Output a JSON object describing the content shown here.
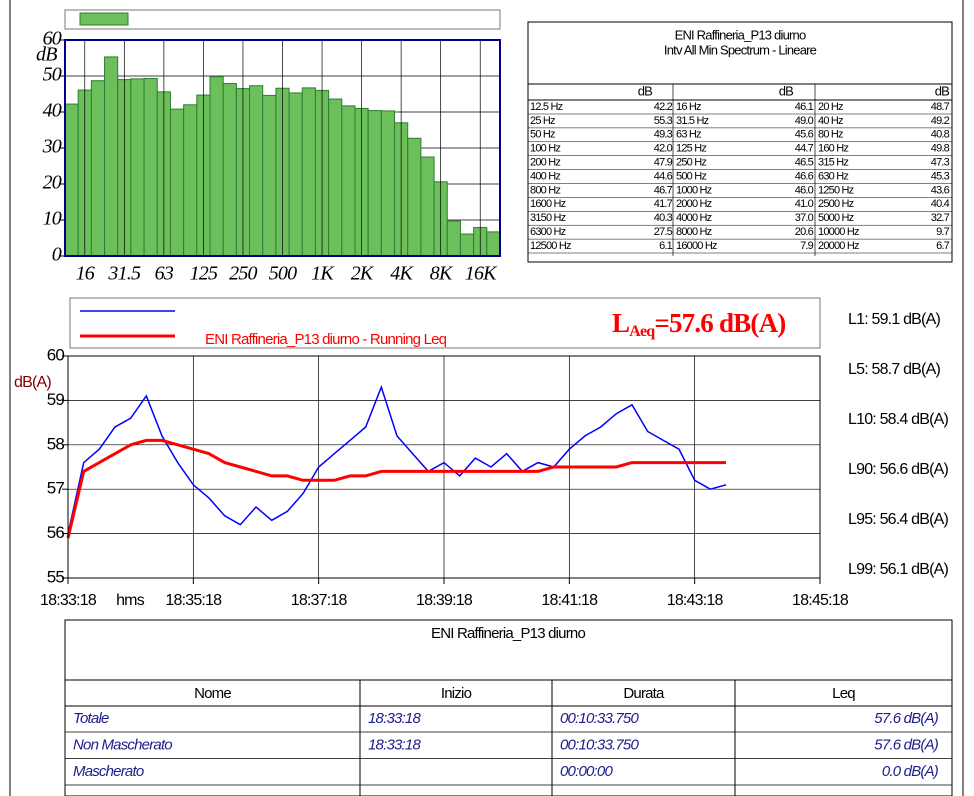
{
  "chart_data": [
    {
      "type": "bar",
      "y_label": "dB",
      "categories": [
        null,
        "16",
        null,
        null,
        "31.5",
        null,
        null,
        "63",
        null,
        null,
        "125",
        null,
        null,
        "250",
        null,
        null,
        "500",
        null,
        null,
        "1K",
        null,
        null,
        "2K",
        null,
        null,
        "4K",
        null,
        null,
        "8K",
        null,
        null,
        "16K",
        null
      ],
      "values": [
        42.2,
        46.1,
        48.7,
        55.3,
        49.0,
        49.2,
        49.3,
        45.6,
        40.8,
        42.0,
        44.7,
        49.8,
        47.9,
        46.5,
        47.3,
        44.6,
        46.6,
        45.3,
        46.7,
        46.0,
        43.6,
        41.7,
        41.0,
        40.4,
        40.3,
        37.0,
        32.7,
        27.5,
        20.6,
        9.7,
        6.1,
        7.9,
        6.7
      ],
      "color": "#6cbf5a",
      "ylim": [
        0,
        60
      ],
      "yticks": [
        0,
        10,
        20,
        30,
        40,
        50,
        60
      ],
      "grid": true
    },
    {
      "type": "line",
      "y_label": "dB(A)",
      "x_label": "hms",
      "x": [
        "18:33:18",
        "18:33:33",
        "18:33:48",
        "18:34:03",
        "18:34:18",
        "18:34:33",
        "18:34:48",
        "18:35:03",
        "18:35:18",
        "18:35:33",
        "18:35:48",
        "18:36:03",
        "18:36:18",
        "18:36:33",
        "18:36:48",
        "18:37:03",
        "18:37:18",
        "18:37:33",
        "18:37:48",
        "18:38:03",
        "18:38:18",
        "18:38:33",
        "18:38:48",
        "18:39:03",
        "18:39:18",
        "18:39:33",
        "18:39:48",
        "18:40:03",
        "18:40:18",
        "18:40:33",
        "18:40:48",
        "18:41:03",
        "18:41:18",
        "18:41:33",
        "18:41:48",
        "18:42:03",
        "18:42:18",
        "18:42:33",
        "18:42:48",
        "18:43:03",
        "18:43:18",
        "18:43:33",
        "18:43:48"
      ],
      "series": [
        {
          "color": "#0000ff",
          "values": [
            56.0,
            57.6,
            57.9,
            58.4,
            58.6,
            59.1,
            58.2,
            57.6,
            57.1,
            56.8,
            56.4,
            56.2,
            56.6,
            56.3,
            56.5,
            56.9,
            57.5,
            57.8,
            58.1,
            58.4,
            59.3,
            58.2,
            57.8,
            57.4,
            57.6,
            57.3,
            57.7,
            57.5,
            57.8,
            57.4,
            57.6,
            57.5,
            57.9,
            58.2,
            58.4,
            58.7,
            58.9,
            58.3,
            58.1,
            57.9,
            57.2,
            57.0,
            57.1
          ]
        },
        {
          "name": "ENI Raffineria_P13 diurno - Running Leq",
          "color": "#ff0000",
          "values": [
            55.9,
            57.4,
            57.6,
            57.8,
            58.0,
            58.1,
            58.1,
            58.0,
            57.9,
            57.8,
            57.6,
            57.5,
            57.4,
            57.3,
            57.3,
            57.2,
            57.2,
            57.2,
            57.3,
            57.3,
            57.4,
            57.4,
            57.4,
            57.4,
            57.4,
            57.4,
            57.4,
            57.4,
            57.4,
            57.4,
            57.4,
            57.5,
            57.5,
            57.5,
            57.5,
            57.5,
            57.6,
            57.6,
            57.6,
            57.6,
            57.6,
            57.6,
            57.6
          ]
        }
      ],
      "xlim": [
        "18:33:18",
        "18:45:18"
      ],
      "xticks": [
        "18:33:18",
        "18:35:18",
        "18:37:18",
        "18:39:18",
        "18:41:18",
        "18:43:18",
        "18:45:18"
      ],
      "ylim": [
        55,
        60
      ],
      "yticks": [
        55,
        56,
        57,
        58,
        59,
        60
      ],
      "grid": true,
      "annotation": {
        "symbol": "L",
        "subscript": "Aeq",
        "text": "=57.6 dB(A)"
      },
      "levels": [
        "L1: 59.1 dB(A)",
        "L5: 58.7 dB(A)",
        "L10: 58.4 dB(A)",
        "L90: 56.6 dB(A)",
        "L95: 56.4 dB(A)",
        "L99: 56.1 dB(A)"
      ]
    }
  ],
  "spectrum_table": {
    "title": [
      "ENI Raffineria_P13 diurno",
      "Intv All Min Spectrum - Lineare"
    ],
    "unit_header": [
      "dB",
      "dB",
      "dB"
    ],
    "rows": [
      [
        "12.5 Hz",
        "42.2",
        "16 Hz",
        "46.1",
        "20 Hz",
        "48.7"
      ],
      [
        "25 Hz",
        "55.3",
        "31.5 Hz",
        "49.0",
        "40 Hz",
        "49.2"
      ],
      [
        "50 Hz",
        "49.3",
        "63 Hz",
        "45.6",
        "80 Hz",
        "40.8"
      ],
      [
        "100 Hz",
        "42.0",
        "125 Hz",
        "44.7",
        "160 Hz",
        "49.8"
      ],
      [
        "200 Hz",
        "47.9",
        "250 Hz",
        "46.5",
        "315 Hz",
        "47.3"
      ],
      [
        "400 Hz",
        "44.6",
        "500 Hz",
        "46.6",
        "630 Hz",
        "45.3"
      ],
      [
        "800 Hz",
        "46.7",
        "1000 Hz",
        "46.0",
        "1250 Hz",
        "43.6"
      ],
      [
        "1600 Hz",
        "41.7",
        "2000 Hz",
        "41.0",
        "2500 Hz",
        "40.4"
      ],
      [
        "3150 Hz",
        "40.3",
        "4000 Hz",
        "37.0",
        "5000 Hz",
        "32.7"
      ],
      [
        "6300 Hz",
        "27.5",
        "8000 Hz",
        "20.6",
        "10000 Hz",
        "9.7"
      ],
      [
        "12500 Hz",
        "6.1",
        "16000 Hz",
        "7.9",
        "20000 Hz",
        "6.7"
      ]
    ]
  },
  "summary_table": {
    "title": "ENI Raffineria_P13 diurno",
    "columns": [
      "Nome",
      "Inizio",
      "Durata",
      "Leq"
    ],
    "rows": [
      [
        "Totale",
        "18:33:18",
        "00:10:33.750",
        "57.6 dB(A)"
      ],
      [
        "Non Mascherato",
        "18:33:18",
        "00:10:33.750",
        "57.6 dB(A)"
      ],
      [
        "Mascherato",
        "",
        "00:00:00",
        "0.0 dB(A)"
      ]
    ]
  }
}
